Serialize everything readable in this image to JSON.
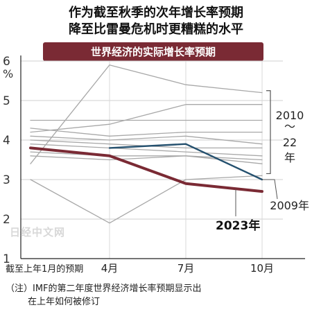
{
  "chart_data": {
    "type": "line",
    "title": "作为截至秋季的次年增长率预期\n降至比雷曼危机时更糟糕的水平",
    "subtitle": "世界经济的实际增长率预期",
    "ylabel": "%",
    "ylim": [
      1,
      6
    ],
    "yticks": [
      1,
      2,
      3,
      4,
      5,
      6
    ],
    "categories": [
      "截至上年1月的预期",
      "4月",
      "7月",
      "10月"
    ],
    "grid": true,
    "series": [
      {
        "name": "2023年",
        "highlight": "main",
        "values": [
          3.8,
          3.6,
          2.9,
          2.7
        ]
      },
      {
        "name": "2009年",
        "highlight": "secondary",
        "values": [
          null,
          3.8,
          3.9,
          3.0
        ]
      },
      {
        "name": "",
        "values": [
          3.4,
          5.9,
          5.4,
          5.2
        ]
      },
      {
        "name": "",
        "values": [
          3.0,
          1.9,
          3.0,
          3.1
        ]
      },
      {
        "name": "",
        "values": [
          4.2,
          4.4,
          4.9,
          4.9
        ]
      },
      {
        "name": "",
        "values": [
          4.5,
          4.5,
          4.5,
          4.5
        ]
      },
      {
        "name": "",
        "values": [
          4.3,
          4.1,
          4.2,
          4.2
        ]
      },
      {
        "name": "",
        "values": [
          4.1,
          4.0,
          4.1,
          3.9
        ]
      },
      {
        "name": "",
        "values": [
          4.0,
          3.9,
          3.8,
          3.8
        ]
      },
      {
        "name": "",
        "values": [
          3.9,
          3.8,
          3.7,
          3.6
        ]
      },
      {
        "name": "",
        "values": [
          3.7,
          3.6,
          3.6,
          3.5
        ]
      },
      {
        "name": "",
        "values": [
          3.6,
          3.5,
          3.6,
          3.4
        ]
      }
    ],
    "bracket_label": "2010\n〜\n22\n年",
    "watermark": "日经中文网",
    "note": "（注）IMF的第二年度世界经济增长率预期显示出\n在上年如何被修订"
  }
}
